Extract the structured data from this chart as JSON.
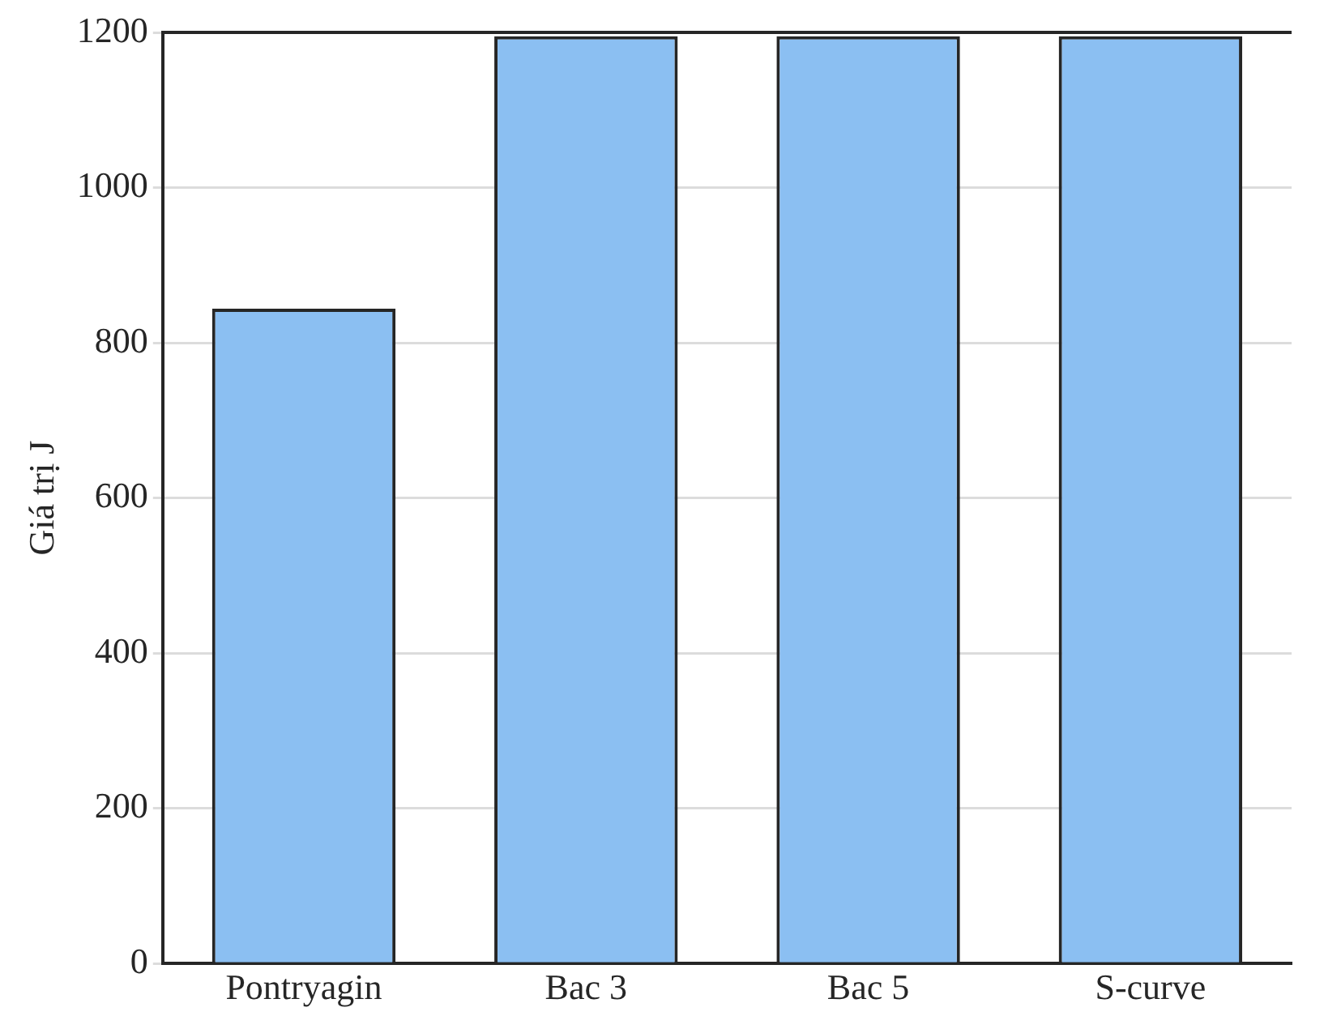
{
  "chart_data": {
    "type": "bar",
    "ylabel": "Giá trị J",
    "categories": [
      "Pontryagin",
      "Bac 3",
      "Bac 5",
      "S-curve"
    ],
    "values": [
      844,
      1195,
      1195,
      1195
    ],
    "color": "#8bbff2",
    "ylim": [
      0,
      1200
    ],
    "yticks": [
      0,
      200,
      400,
      600,
      800,
      1000,
      1200
    ],
    "grid": "y",
    "legend": false
  }
}
